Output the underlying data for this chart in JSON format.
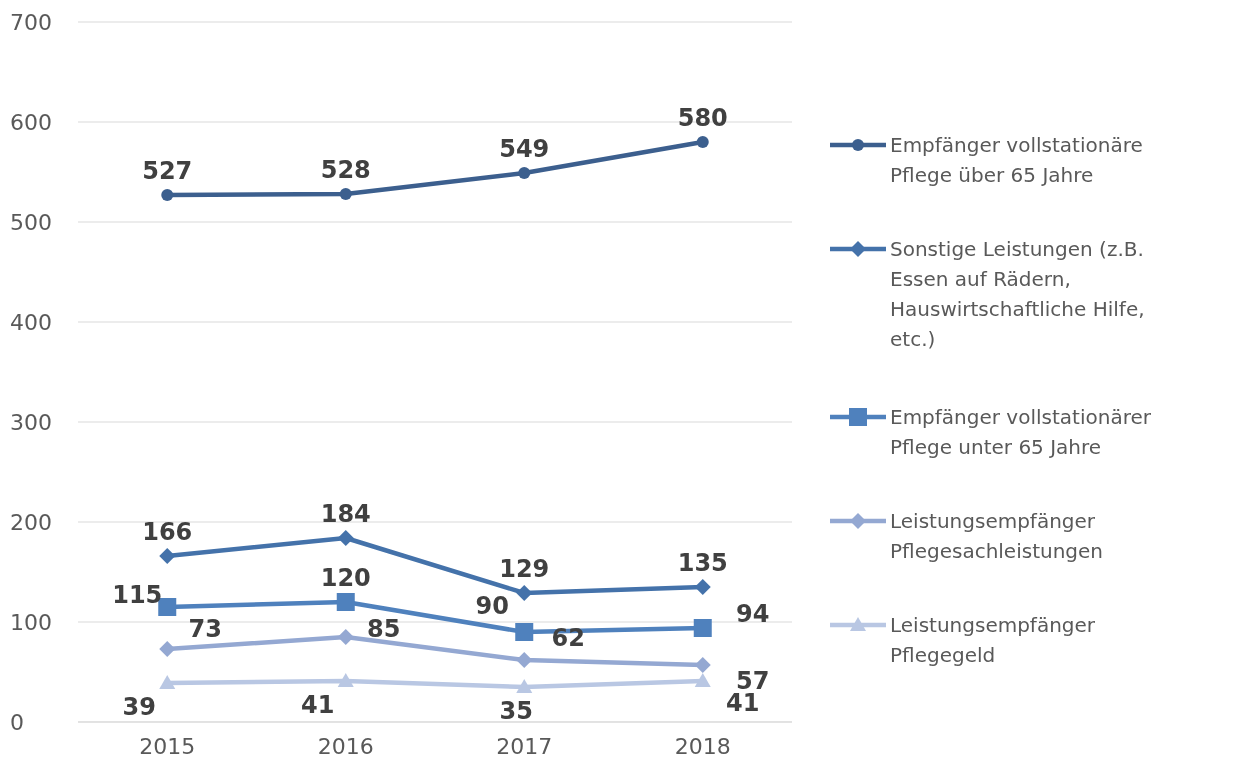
{
  "chart_data": {
    "type": "line",
    "categories": [
      "2015",
      "2016",
      "2017",
      "2018"
    ],
    "series": [
      {
        "name": "Empfänger vollstationäre Pflege über 65 Jahre",
        "color": "#3c5f8e",
        "values": [
          527,
          528,
          549,
          580
        ],
        "marker": "circle"
      },
      {
        "name": "Sonstige Leistungen (z.B. Essen auf Rädern, Hauswirtschaftliche Hilfe, etc.)",
        "color": "#4472aa",
        "values": [
          166,
          184,
          129,
          135
        ],
        "marker": "diamond"
      },
      {
        "name": "Empfänger vollstationärer Pflege unter 65 Jahre",
        "color": "#4f81bd",
        "values": [
          115,
          120,
          90,
          94
        ],
        "marker": "square"
      },
      {
        "name": "Leistungsempfänger Pflegesachleistungen",
        "color": "#94a8d2",
        "values": [
          73,
          85,
          62,
          57
        ],
        "marker": "diamond"
      },
      {
        "name": "Leistungsempfänger Pflegegeld",
        "color": "#b9c7e3",
        "values": [
          39,
          41,
          35,
          41
        ],
        "marker": "triangle"
      }
    ],
    "ylim": [
      0,
      700
    ],
    "yticks": [
      0,
      100,
      200,
      300,
      400,
      500,
      600,
      700
    ],
    "grid": "y",
    "legend": "right",
    "data_labels": true,
    "line_style": "solid"
  }
}
